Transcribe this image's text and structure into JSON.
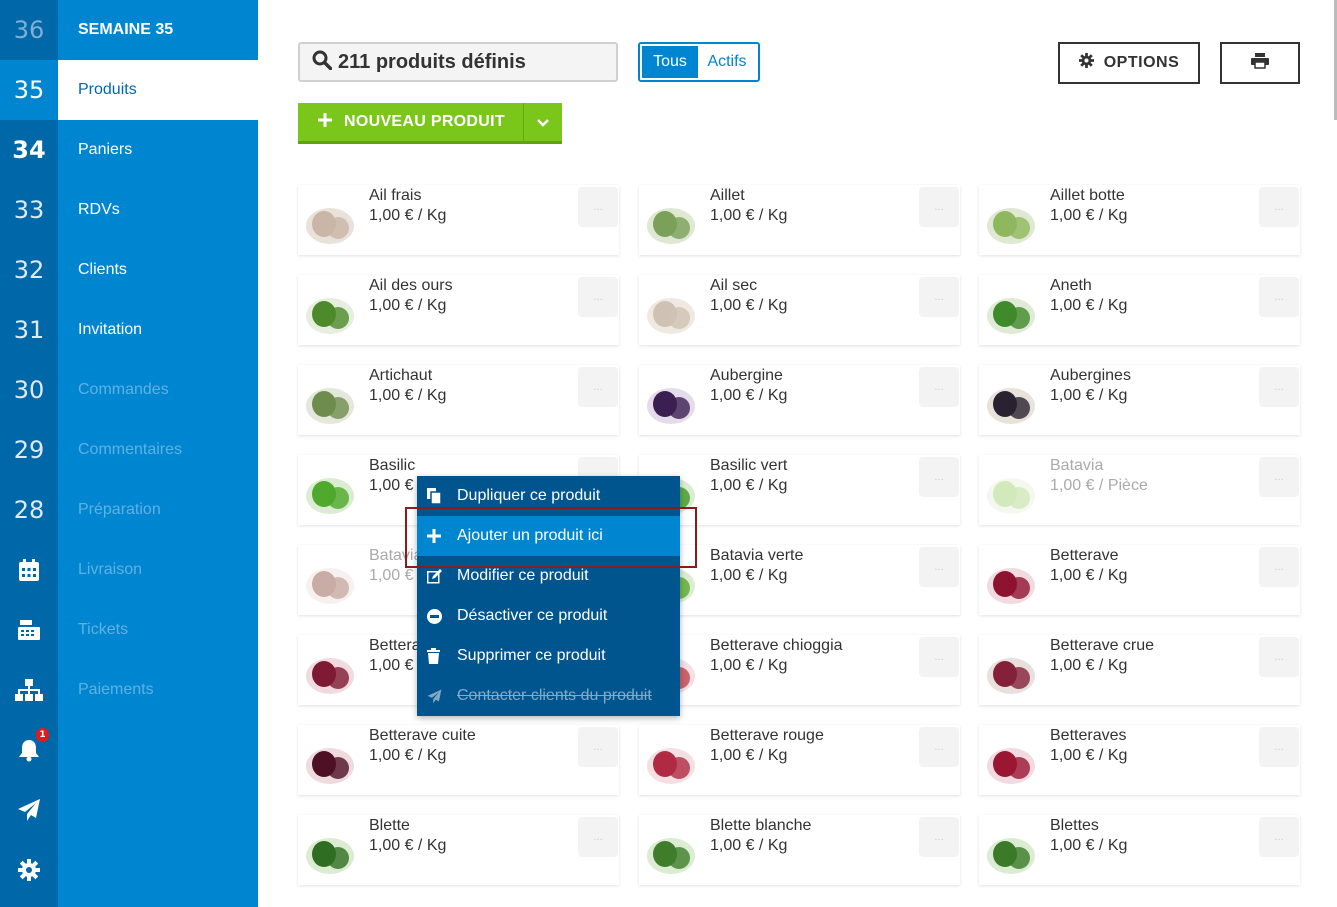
{
  "week_rail": {
    "weeks": [
      "36",
      "35",
      "34",
      "33",
      "32",
      "31",
      "30",
      "29",
      "28"
    ],
    "icons": [
      "calendar-icon",
      "cash-register-icon",
      "sitemap-icon",
      "bell-icon",
      "paper-plane-icon",
      "gear-icon"
    ],
    "notification_count": "1"
  },
  "nav": {
    "title": "SEMAINE 35",
    "items": [
      "Produits",
      "Paniers",
      "RDVs",
      "Clients",
      "Invitation",
      "Commandes",
      "Commentaires",
      "Préparation",
      "Livraison",
      "Tickets",
      "Paiements"
    ]
  },
  "toolbar": {
    "search_text": "211 produits définis",
    "filter_all": "Tous",
    "filter_active": "Actifs",
    "options_label": "OPTIONS",
    "new_product_label": "NOUVEAU PRODUIT"
  },
  "products": [
    {
      "name": "Ail frais",
      "price": "1,00 € / Kg"
    },
    {
      "name": "Aillet",
      "price": "1,00 € / Kg"
    },
    {
      "name": "Aillet botte",
      "price": "1,00 € / Kg"
    },
    {
      "name": "Ail des ours",
      "price": "1,00 € / Kg"
    },
    {
      "name": "Ail sec",
      "price": "1,00 € / Kg"
    },
    {
      "name": "Aneth",
      "price": "1,00 € / Kg"
    },
    {
      "name": "Artichaut",
      "price": "1,00 € / Kg"
    },
    {
      "name": "Aubergine",
      "price": "1,00 € / Kg"
    },
    {
      "name": "Aubergines",
      "price": "1,00 € / Kg"
    },
    {
      "name": "Basilic",
      "price": "1,00 €"
    },
    {
      "name": "Basilic vert",
      "price": "1,00 € / Kg"
    },
    {
      "name": "Batavia",
      "price": "1,00 € / Pièce"
    },
    {
      "name": "Batavia",
      "price": "1,00 €"
    },
    {
      "name": "Batavia verte",
      "price": "1,00 € / Kg"
    },
    {
      "name": "Betterave",
      "price": "1,00 € / Kg"
    },
    {
      "name": "Betterav",
      "price": "1,00 €"
    },
    {
      "name": "Betterave chioggia",
      "price": "1,00 € / Kg"
    },
    {
      "name": "Betterave crue",
      "price": "1,00 € / Kg"
    },
    {
      "name": "Betterave cuite",
      "price": "1,00 € / Kg"
    },
    {
      "name": "Betterave rouge",
      "price": "1,00 € / Kg"
    },
    {
      "name": "Betteraves",
      "price": "1,00 € / Kg"
    },
    {
      "name": "Blette",
      "price": "1,00 € / Kg"
    },
    {
      "name": "Blette blanche",
      "price": "1,00 € / Kg"
    },
    {
      "name": "Blettes",
      "price": "1,00 € / Kg"
    }
  ],
  "more_label": "...",
  "context_menu": {
    "items": [
      {
        "label": "Dupliquer ce produit",
        "icon": "copy-icon"
      },
      {
        "label": "Ajouter un produit ici",
        "icon": "plus-icon"
      },
      {
        "label": "Modifier ce produit",
        "icon": "edit-icon"
      },
      {
        "label": "Désactiver ce produit",
        "icon": "minus-circle-icon"
      },
      {
        "label": "Supprimer ce produit",
        "icon": "trash-icon"
      },
      {
        "label": "Contacter clients du produit",
        "icon": "paper-plane-icon"
      }
    ]
  },
  "colors": {
    "rail": "#0068a8",
    "nav": "#0086d1",
    "menu": "#00558f",
    "green": "#7bc61b",
    "highlight": "#8b1c1c"
  }
}
